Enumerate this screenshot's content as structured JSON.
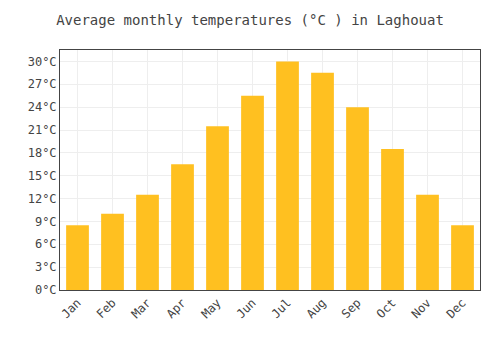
{
  "chart_data": {
    "type": "bar",
    "title": "Average monthly temperatures (°C ) in Laghouat",
    "categories": [
      "Jan",
      "Feb",
      "Mar",
      "Apr",
      "May",
      "Jun",
      "Jul",
      "Aug",
      "Sep",
      "Oct",
      "Nov",
      "Dec"
    ],
    "values": [
      8.5,
      10.0,
      12.5,
      16.5,
      21.5,
      25.5,
      30.0,
      28.5,
      24.0,
      18.5,
      12.5,
      8.5
    ],
    "color": "#FFC020",
    "ylim": [
      0,
      31.5
    ],
    "yticks": [
      {
        "value": 0,
        "label": "0°C"
      },
      {
        "value": 3,
        "label": "3°C"
      },
      {
        "value": 6,
        "label": "6°C"
      },
      {
        "value": 9,
        "label": "9°C"
      },
      {
        "value": 12,
        "label": "12°C"
      },
      {
        "value": 15,
        "label": "15°C"
      },
      {
        "value": 18,
        "label": "18°C"
      },
      {
        "value": 21,
        "label": "21°C"
      },
      {
        "value": 24,
        "label": "24°C"
      },
      {
        "value": 27,
        "label": "27°C"
      },
      {
        "value": 30,
        "label": "30°C"
      }
    ],
    "grid": true
  }
}
